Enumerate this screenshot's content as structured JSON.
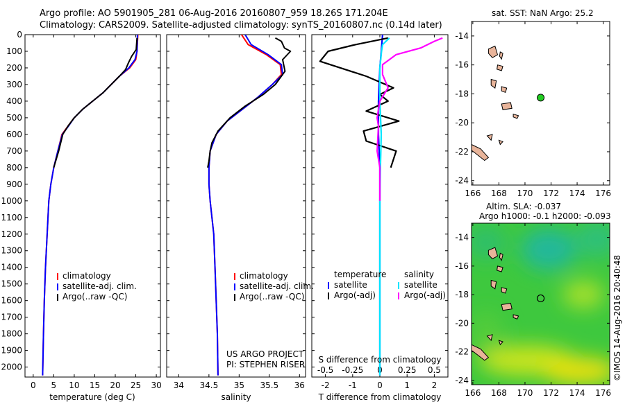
{
  "header": {
    "line1": "Argo profile: AO 5901905_281 06-Aug-2016 20160807_959 18.26S 171.204E",
    "line2": "Climatology: CARS2009. Satellite-adjusted climatology: synTS_20160807.nc (0.14d later)"
  },
  "colors": {
    "climatology": "#ff0000",
    "satellite": "#0000ff",
    "argo": "#000000",
    "satellite_salinity": "#00e5ff",
    "argo_salinity": "#ff00ff",
    "land": "#e8b49a",
    "float_marker": "#22cc22"
  },
  "credits": {
    "project": "US ARGO PROJECT",
    "pi": "PI: STEPHEN RISER",
    "imos": "©IMOS 14-Aug-2016 20:40:48"
  },
  "chart_data": [
    {
      "type": "line",
      "xlabel": "temperature (deg C)",
      "ylabel": "",
      "xlim": [
        -2,
        31
      ],
      "ylim": [
        2060,
        0
      ],
      "xticks": [
        0,
        5,
        10,
        15,
        20,
        25,
        30
      ],
      "yticks": [
        0,
        100,
        200,
        300,
        400,
        500,
        600,
        700,
        800,
        900,
        1000,
        1100,
        1200,
        1300,
        1400,
        1500,
        1600,
        1700,
        1800,
        1900,
        2000
      ],
      "legend": [
        "climatology",
        "satellite-adj. clim.",
        "Argo(..raw -QC)"
      ],
      "series": [
        {
          "name": "climatology",
          "color_key": "climatology",
          "points": [
            [
              25.5,
              0
            ],
            [
              25.3,
              100
            ],
            [
              25,
              150
            ],
            [
              23.5,
              200
            ],
            [
              21,
              250
            ],
            [
              19,
              300
            ],
            [
              17,
              350
            ],
            [
              14.5,
              400
            ],
            [
              12,
              450
            ],
            [
              10,
              500
            ],
            [
              8.5,
              550
            ],
            [
              7,
              600
            ],
            [
              6,
              700
            ],
            [
              5,
              800
            ],
            [
              4.3,
              900
            ],
            [
              3.8,
              1000
            ],
            [
              3.4,
              1200
            ],
            [
              3,
              1400
            ],
            [
              2.7,
              1600
            ],
            [
              2.5,
              1800
            ],
            [
              2.3,
              2050
            ]
          ]
        },
        {
          "name": "satellite-adj. clim.",
          "color_key": "satellite",
          "points": [
            [
              25.4,
              0
            ],
            [
              25.3,
              100
            ],
            [
              24.8,
              150
            ],
            [
              23.3,
              200
            ],
            [
              21,
              250
            ],
            [
              19,
              300
            ],
            [
              17,
              350
            ],
            [
              14.5,
              400
            ],
            [
              12,
              450
            ],
            [
              10,
              500
            ],
            [
              8.6,
              550
            ],
            [
              7.1,
              600
            ],
            [
              6,
              700
            ],
            [
              5,
              800
            ],
            [
              4.3,
              900
            ],
            [
              3.8,
              1000
            ],
            [
              3.4,
              1200
            ],
            [
              3,
              1400
            ],
            [
              2.7,
              1600
            ],
            [
              2.5,
              1800
            ],
            [
              2.3,
              2050
            ]
          ]
        },
        {
          "name": "Argo(..raw -QC)",
          "color_key": "argo",
          "points": [
            [
              25.3,
              20
            ],
            [
              25.1,
              90
            ],
            [
              24,
              130
            ],
            [
              23.2,
              170
            ],
            [
              22.5,
              210
            ],
            [
              21,
              250
            ],
            [
              19,
              300
            ],
            [
              17,
              350
            ],
            [
              14.5,
              400
            ],
            [
              12,
              450
            ],
            [
              10,
              500
            ],
            [
              8.5,
              550
            ],
            [
              7.2,
              600
            ],
            [
              6.2,
              700
            ],
            [
              5,
              800
            ]
          ]
        }
      ]
    },
    {
      "type": "line",
      "xlabel": "salinity",
      "ylabel": "",
      "xlim": [
        33.8,
        36.1
      ],
      "ylim": [
        2060,
        0
      ],
      "xticks": [
        34,
        34.5,
        35,
        35.5,
        36
      ],
      "xticklabels": [
        "34",
        "34.5",
        "35",
        "35.5",
        "36"
      ],
      "legend": [
        "climatology",
        "satellite-adj. clim.",
        "Argo(..raw -QC)"
      ],
      "series": [
        {
          "name": "climatology",
          "color_key": "climatology",
          "points": [
            [
              35.04,
              0
            ],
            [
              35.15,
              60
            ],
            [
              35.45,
              120
            ],
            [
              35.68,
              180
            ],
            [
              35.7,
              240
            ],
            [
              35.55,
              300
            ],
            [
              35.3,
              380
            ],
            [
              35.05,
              450
            ],
            [
              34.8,
              520
            ],
            [
              34.62,
              600
            ],
            [
              34.52,
              700
            ],
            [
              34.5,
              800
            ],
            [
              34.5,
              900
            ],
            [
              34.52,
              1000
            ],
            [
              34.55,
              1100
            ],
            [
              34.58,
              1200
            ],
            [
              34.6,
              1400
            ],
            [
              34.62,
              1600
            ],
            [
              34.64,
              1800
            ],
            [
              34.65,
              2050
            ]
          ]
        },
        {
          "name": "satellite-adj. clim.",
          "color_key": "satellite",
          "points": [
            [
              35.1,
              0
            ],
            [
              35.2,
              60
            ],
            [
              35.48,
              120
            ],
            [
              35.7,
              180
            ],
            [
              35.72,
              240
            ],
            [
              35.55,
              300
            ],
            [
              35.3,
              380
            ],
            [
              35.05,
              450
            ],
            [
              34.8,
              520
            ],
            [
              34.62,
              600
            ],
            [
              34.52,
              700
            ],
            [
              34.5,
              800
            ],
            [
              34.5,
              900
            ],
            [
              34.52,
              1000
            ],
            [
              34.55,
              1100
            ],
            [
              34.58,
              1200
            ],
            [
              34.6,
              1400
            ],
            [
              34.62,
              1600
            ],
            [
              34.64,
              1800
            ],
            [
              34.65,
              2050
            ]
          ]
        },
        {
          "name": "Argo(..raw -QC)",
          "color_key": "argo",
          "points": [
            [
              35.6,
              20
            ],
            [
              35.7,
              40
            ],
            [
              35.75,
              80
            ],
            [
              35.85,
              100
            ],
            [
              35.72,
              150
            ],
            [
              35.76,
              220
            ],
            [
              35.6,
              300
            ],
            [
              35.4,
              360
            ],
            [
              35.1,
              430
            ],
            [
              34.85,
              500
            ],
            [
              34.65,
              580
            ],
            [
              34.55,
              650
            ],
            [
              34.52,
              700
            ],
            [
              34.5,
              760
            ],
            [
              34.48,
              800
            ]
          ]
        }
      ]
    },
    {
      "type": "line",
      "xlabel": "T difference from climatology",
      "xlabel2": "S difference from climatology",
      "xlim": [
        -2.5,
        2.5
      ],
      "ylim": [
        2060,
        0
      ],
      "xticks": [
        -2,
        -1,
        0,
        1,
        2
      ],
      "xticks_top": [
        -0.5,
        -0.25,
        0,
        0.25,
        0.5
      ],
      "xticklabels_top": [
        "-0.5",
        "-0.25",
        "0",
        "0.25",
        "0.5"
      ],
      "legend_left_title": "temperature",
      "legend_right_title": "salinity",
      "legend": [
        "satellite",
        "Argo(-adj)",
        "satellite",
        "Argo(-adj)"
      ],
      "series": [
        {
          "name": "satellite",
          "group": "temperature",
          "color_key": "satellite",
          "points": [
            [
              0.1,
              0
            ],
            [
              0.05,
              100
            ],
            [
              0,
              200
            ],
            [
              -0.05,
              400
            ],
            [
              -0.05,
              600
            ],
            [
              0,
              800
            ],
            [
              0,
              1000
            ],
            [
              0,
              1500
            ],
            [
              0,
              2050
            ]
          ]
        },
        {
          "name": "Argo(-adj)",
          "group": "temperature",
          "color_key": "argo",
          "points": [
            [
              0.3,
              20
            ],
            [
              -0.9,
              60
            ],
            [
              -1.9,
              100
            ],
            [
              -2.2,
              160
            ],
            [
              -0.5,
              250
            ],
            [
              0.5,
              320
            ],
            [
              0,
              360
            ],
            [
              0.3,
              400
            ],
            [
              -0.5,
              460
            ],
            [
              0.7,
              520
            ],
            [
              -0.6,
              580
            ],
            [
              -0.5,
              640
            ],
            [
              0.6,
              700
            ],
            [
              0.4,
              800
            ]
          ]
        },
        {
          "name": "satellite",
          "group": "salinity",
          "color_key": "satellite_salinity",
          "points": [
            [
              0.35,
              20
            ],
            [
              0.1,
              60
            ],
            [
              0.06,
              100
            ],
            [
              0,
              200
            ],
            [
              0,
              400
            ],
            [
              0.05,
              600
            ],
            [
              0.02,
              800
            ],
            [
              0,
              1000
            ],
            [
              0,
              1500
            ],
            [
              0,
              2050
            ]
          ]
        },
        {
          "name": "Argo(-adj)",
          "group": "salinity",
          "color_key": "argo_salinity",
          "points": [
            [
              2.3,
              20
            ],
            [
              2,
              40
            ],
            [
              1.5,
              80
            ],
            [
              0.6,
              120
            ],
            [
              0.1,
              180
            ],
            [
              0.1,
              240
            ],
            [
              0.3,
              320
            ],
            [
              0,
              400
            ],
            [
              -0.1,
              500
            ],
            [
              -0.05,
              550
            ],
            [
              -0.1,
              700
            ],
            [
              0,
              800
            ],
            [
              0,
              900
            ],
            [
              0,
              1000
            ]
          ]
        }
      ]
    },
    {
      "type": "scatter",
      "title": "sat. SST: NaN Argo: 25.2",
      "xlim": [
        165.9,
        176.5
      ],
      "ylim": [
        -24.3,
        -13
      ],
      "xticks": [
        166,
        168,
        170,
        172,
        174,
        176
      ],
      "yticks": [
        -14,
        -16,
        -18,
        -20,
        -22,
        -24
      ],
      "float": {
        "lon": 171.204,
        "lat": -18.26
      },
      "islands": [
        {
          "points": [
            [
              167.2,
              -14.9
            ],
            [
              167.7,
              -14.7
            ],
            [
              167.9,
              -15.3
            ],
            [
              167.5,
              -15.5
            ],
            [
              167.2,
              -15.2
            ]
          ]
        },
        {
          "points": [
            [
              168.1,
              -15.1
            ],
            [
              168.3,
              -15.2
            ],
            [
              168.2,
              -15.6
            ],
            [
              168.05,
              -15.4
            ]
          ]
        },
        {
          "points": [
            [
              167.9,
              -16.0
            ],
            [
              168.3,
              -16.1
            ],
            [
              168.2,
              -16.4
            ],
            [
              167.85,
              -16.3
            ]
          ]
        },
        {
          "points": [
            [
              167.4,
              -17.0
            ],
            [
              167.8,
              -17.1
            ],
            [
              167.7,
              -17.6
            ],
            [
              167.4,
              -17.4
            ]
          ]
        },
        {
          "points": [
            [
              168.2,
              -17.5
            ],
            [
              168.6,
              -17.6
            ],
            [
              168.5,
              -17.9
            ],
            [
              168.2,
              -17.8
            ]
          ]
        },
        {
          "points": [
            [
              168.2,
              -18.7
            ],
            [
              168.9,
              -18.6
            ],
            [
              169.0,
              -19.0
            ],
            [
              168.3,
              -19.1
            ]
          ]
        },
        {
          "points": [
            [
              169.1,
              -19.4
            ],
            [
              169.5,
              -19.5
            ],
            [
              169.4,
              -19.7
            ],
            [
              169.1,
              -19.6
            ]
          ]
        },
        {
          "points": [
            [
              167.1,
              -20.9
            ],
            [
              167.5,
              -20.8
            ],
            [
              167.4,
              -21.2
            ]
          ]
        },
        {
          "points": [
            [
              168.0,
              -21.2
            ],
            [
              168.3,
              -21.3
            ],
            [
              168.1,
              -21.5
            ]
          ]
        },
        {
          "points": [
            [
              165.9,
              -21.5
            ],
            [
              166.6,
              -21.8
            ],
            [
              167.2,
              -22.4
            ],
            [
              166.9,
              -22.6
            ],
            [
              166.2,
              -22.1
            ],
            [
              165.9,
              -21.9
            ]
          ]
        }
      ]
    },
    {
      "type": "heatmap",
      "title1": "Altim. SLA: -0.037",
      "title2": "Argo h1000: -0.1 h2000: -0.093",
      "xlim": [
        165.9,
        176.5
      ],
      "ylim": [
        -24.3,
        -13
      ],
      "xticks": [
        166,
        168,
        170,
        172,
        174,
        176
      ],
      "yticks": [
        -14,
        -16,
        -18,
        -20,
        -22,
        -24
      ],
      "float": {
        "lon": 171.204,
        "lat": -18.26
      }
    }
  ]
}
